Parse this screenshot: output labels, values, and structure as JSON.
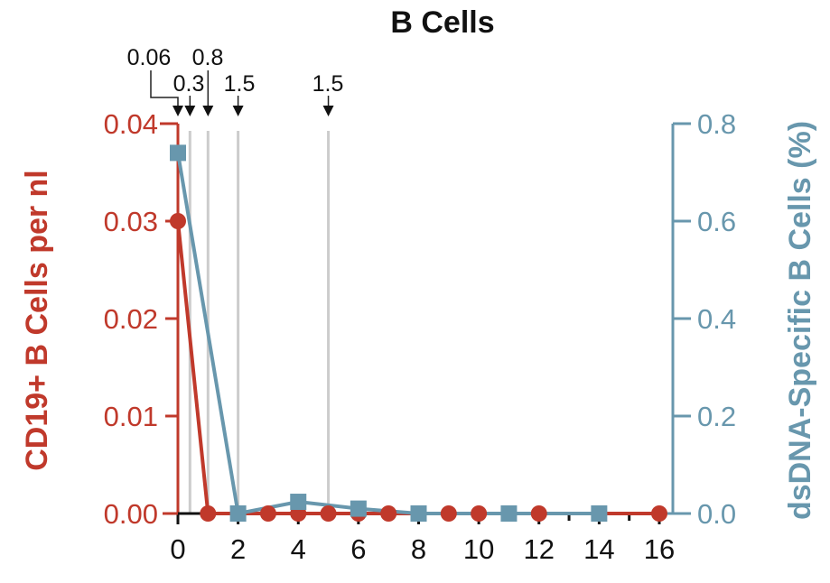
{
  "chart_data": {
    "type": "line",
    "title": "B Cells",
    "xlabel": "",
    "ylabel": "CD19+ B Cells per nl",
    "y2label": "dsDNA-Specific B Cells (%)",
    "xlim": [
      0,
      16
    ],
    "ylim": [
      0,
      0.04
    ],
    "y2lim": [
      0,
      0.8
    ],
    "xticks": [
      "0",
      "2",
      "4",
      "6",
      "8",
      "10",
      "12",
      "14",
      "16"
    ],
    "yticks": [
      "0.00",
      "0.01",
      "0.02",
      "0.03",
      "0.04"
    ],
    "y2ticks": [
      "0.0",
      "0.2",
      "0.4",
      "0.6",
      "0.8"
    ],
    "grid": false,
    "colors": {
      "left": "#c0392b",
      "right": "#6897ad",
      "event": "#cccccc"
    },
    "series": [
      {
        "name": "CD19+ B Cells per nl",
        "axis": "left",
        "marker": "circle",
        "x": [
          0,
          1,
          3,
          4,
          5,
          6,
          7,
          9,
          10,
          12,
          16
        ],
        "y": [
          0.03,
          0,
          0,
          0,
          0,
          0,
          0,
          0,
          0,
          0,
          0
        ]
      },
      {
        "name": "dsDNA-Specific B Cells (%)",
        "axis": "right",
        "marker": "square",
        "x": [
          0,
          2,
          4,
          6,
          8,
          11,
          14
        ],
        "y": [
          0.74,
          0,
          0.024,
          0.01,
          0,
          0,
          0
        ]
      }
    ],
    "annotations": [
      {
        "label": "0.06",
        "x": 0
      },
      {
        "label": "0.3",
        "x": 0.4
      },
      {
        "label": "0.8",
        "x": 1
      },
      {
        "label": "1.5",
        "x": 2
      },
      {
        "label": "1.5",
        "x": 5
      }
    ]
  }
}
